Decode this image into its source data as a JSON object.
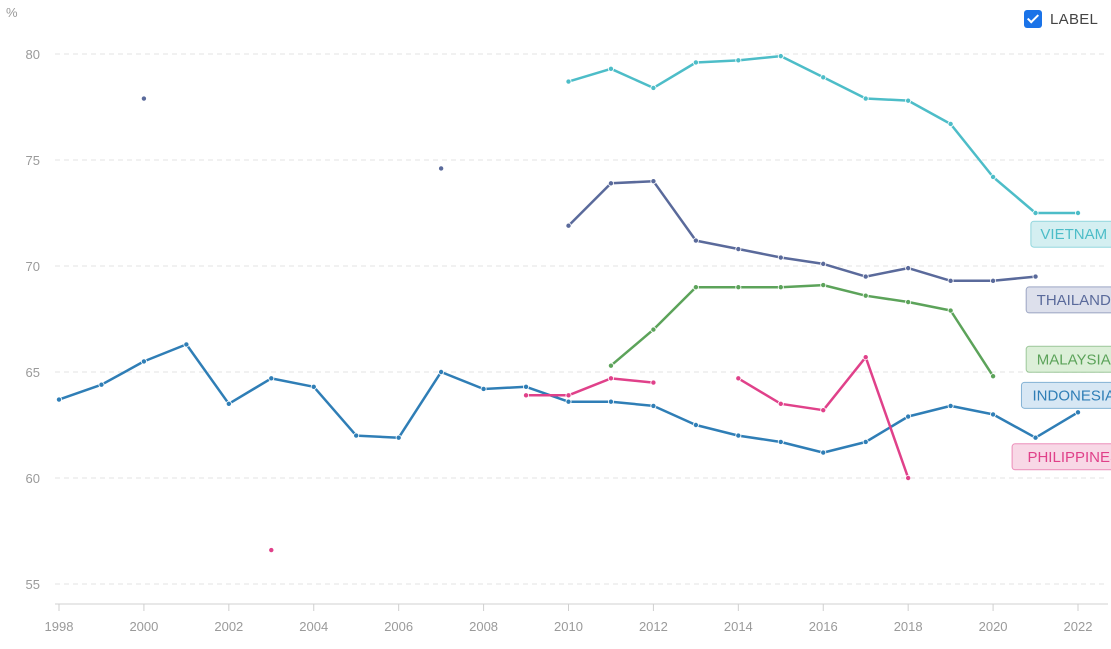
{
  "toggle": {
    "label": "LABEL",
    "checked": true
  },
  "chart_data": {
    "type": "line",
    "title": "",
    "xlabel": "",
    "ylabel": "%",
    "xlim": [
      1998,
      2022
    ],
    "ylim": [
      54,
      81
    ],
    "y_ticks": [
      55,
      60,
      65,
      70,
      75,
      80
    ],
    "x_ticks": [
      1998,
      2000,
      2002,
      2004,
      2006,
      2008,
      2010,
      2012,
      2014,
      2016,
      2018,
      2020,
      2022
    ],
    "grid": true,
    "series": [
      {
        "name": "VIETNAM",
        "color": "#4dbdc8",
        "label_fill": "#d4eff1",
        "label_at": [
          2021.9,
          71.5
        ],
        "points": [
          [
            2010,
            78.7
          ],
          [
            2011,
            79.3
          ],
          [
            2012,
            78.4
          ],
          [
            2013,
            79.6
          ],
          [
            2014,
            79.7
          ],
          [
            2015,
            79.9
          ],
          [
            2016,
            78.9
          ],
          [
            2017,
            77.9
          ],
          [
            2018,
            77.8
          ],
          [
            2019,
            76.7
          ],
          [
            2020,
            74.2
          ],
          [
            2021,
            72.5
          ],
          [
            2022,
            72.5
          ]
        ]
      },
      {
        "name": "THAILAND",
        "color": "#5a6a9b",
        "label_fill": "#dde0ec",
        "label_at": [
          2021.9,
          68.4
        ],
        "points": [
          [
            2000,
            77.9
          ],
          [
            2007,
            74.6
          ],
          [
            2010,
            71.9
          ],
          [
            2011,
            73.9
          ],
          [
            2012,
            74.0
          ],
          [
            2013,
            71.2
          ],
          [
            2014,
            70.8
          ],
          [
            2015,
            70.4
          ],
          [
            2016,
            70.1
          ],
          [
            2017,
            69.5
          ],
          [
            2018,
            69.9
          ],
          [
            2019,
            69.3
          ],
          [
            2020,
            69.3
          ],
          [
            2021,
            69.5
          ]
        ]
      },
      {
        "name": "MALAYSIA",
        "color": "#5ca35a",
        "label_fill": "#dcefd8",
        "label_at": [
          2021.9,
          65.6
        ],
        "points": [
          [
            2011,
            65.3
          ],
          [
            2012,
            67.0
          ],
          [
            2013,
            69.0
          ],
          [
            2014,
            69.0
          ],
          [
            2015,
            69.0
          ],
          [
            2016,
            69.1
          ],
          [
            2017,
            68.6
          ],
          [
            2018,
            68.3
          ],
          [
            2019,
            67.9
          ],
          [
            2020,
            64.8
          ]
        ]
      },
      {
        "name": "INDONESIA",
        "color": "#2f7eb6",
        "label_fill": "#d7e7f4",
        "label_at": [
          2021.9,
          63.9
        ],
        "points": [
          [
            1998,
            63.7
          ],
          [
            1999,
            64.4
          ],
          [
            2000,
            65.5
          ],
          [
            2001,
            66.3
          ],
          [
            2002,
            63.5
          ],
          [
            2003,
            64.7
          ],
          [
            2004,
            64.3
          ],
          [
            2005,
            62.0
          ],
          [
            2006,
            61.9
          ],
          [
            2007,
            65.0
          ],
          [
            2008,
            64.2
          ],
          [
            2009,
            64.3
          ],
          [
            2010,
            63.6
          ],
          [
            2011,
            63.6
          ],
          [
            2012,
            63.4
          ],
          [
            2013,
            62.5
          ],
          [
            2014,
            62.0
          ],
          [
            2015,
            61.7
          ],
          [
            2016,
            61.2
          ],
          [
            2017,
            61.7
          ],
          [
            2018,
            62.9
          ],
          [
            2019,
            63.4
          ],
          [
            2020,
            63.0
          ],
          [
            2021,
            61.9
          ],
          [
            2022,
            63.1
          ]
        ]
      },
      {
        "name": "PHILIPPINES",
        "color": "#e0418a",
        "label_fill": "#f8d8e6",
        "label_at": [
          2021.9,
          61.0
        ],
        "points": [
          [
            2003,
            56.6
          ],
          [
            2009,
            63.9
          ],
          [
            2010,
            63.9
          ],
          [
            2011,
            64.7
          ],
          [
            2012,
            64.5
          ],
          [
            2014,
            64.7
          ],
          [
            2015,
            63.5
          ],
          [
            2016,
            63.2
          ],
          [
            2017,
            65.7
          ],
          [
            2018,
            60.0
          ]
        ]
      }
    ]
  }
}
